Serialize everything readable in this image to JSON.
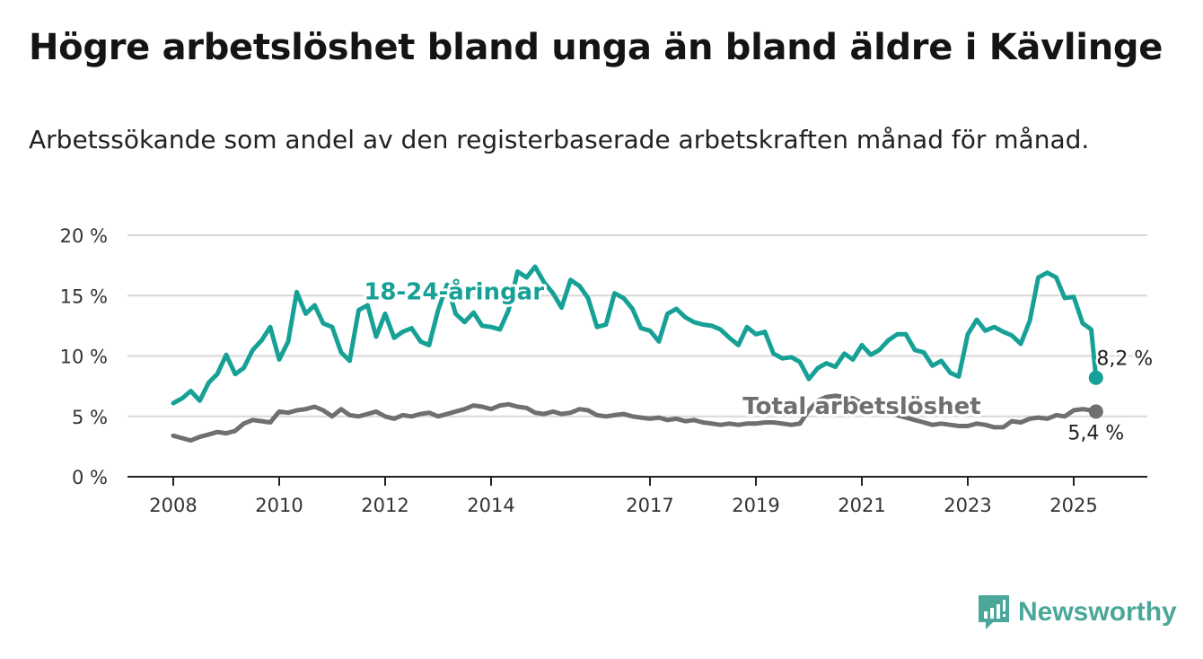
{
  "title": "Högre arbetslöshet bland unga än bland äldre i Kävlinge",
  "subtitle": "Arbetssökande som andel av den registerbaserade arbetskraften månad för månad.",
  "logo": {
    "name": "Newsworthy",
    "icon": "newsworthy-logo-icon",
    "color": "#4aa79a"
  },
  "chart_data": {
    "type": "line",
    "title": "Högre arbetslöshet bland unga än bland äldre i Kävlinge",
    "subtitle": "Arbetssökande som andel av den registerbaserade arbetskraften månad för månad.",
    "xlabel": "",
    "ylabel": "",
    "xlim": [
      2007.8,
      2026.4
    ],
    "ylim": [
      0,
      20
    ],
    "x_ticks": [
      {
        "value": 2008,
        "label": "2008"
      },
      {
        "value": 2010,
        "label": "2010"
      },
      {
        "value": 2012,
        "label": "2012"
      },
      {
        "value": 2014,
        "label": "2014"
      },
      {
        "value": 2017,
        "label": "2017"
      },
      {
        "value": 2019,
        "label": "2019"
      },
      {
        "value": 2021,
        "label": "2021"
      },
      {
        "value": 2023,
        "label": "2023"
      },
      {
        "value": 2025,
        "label": "2025"
      }
    ],
    "y_ticks": [
      {
        "value": 0,
        "label": "0 %"
      },
      {
        "value": 5,
        "label": "5 %"
      },
      {
        "value": 10,
        "label": "10 %"
      },
      {
        "value": 15,
        "label": "15 %"
      },
      {
        "value": 20,
        "label": "20 %"
      }
    ],
    "grid": "horizontal",
    "legend": "inline labels",
    "series": [
      {
        "name": "18-24-åringar",
        "color": "#17a196",
        "label_at": {
          "x": 2013.3,
          "y": 14.7
        },
        "end_label": "8,2 %",
        "end_point": {
          "x": 2025.42,
          "y": 8.2
        },
        "points": [
          [
            2008.0,
            6.1
          ],
          [
            2008.17,
            6.5
          ],
          [
            2008.33,
            7.1
          ],
          [
            2008.5,
            6.3
          ],
          [
            2008.67,
            7.8
          ],
          [
            2008.83,
            8.5
          ],
          [
            2009.0,
            10.1
          ],
          [
            2009.17,
            8.5
          ],
          [
            2009.33,
            9.0
          ],
          [
            2009.5,
            10.5
          ],
          [
            2009.67,
            11.3
          ],
          [
            2009.83,
            12.4
          ],
          [
            2010.0,
            9.7
          ],
          [
            2010.17,
            11.2
          ],
          [
            2010.33,
            15.3
          ],
          [
            2010.5,
            13.5
          ],
          [
            2010.67,
            14.2
          ],
          [
            2010.83,
            12.7
          ],
          [
            2011.0,
            12.4
          ],
          [
            2011.17,
            10.3
          ],
          [
            2011.33,
            9.6
          ],
          [
            2011.5,
            13.8
          ],
          [
            2011.67,
            14.2
          ],
          [
            2011.83,
            11.6
          ],
          [
            2012.0,
            13.5
          ],
          [
            2012.17,
            11.5
          ],
          [
            2012.33,
            12.0
          ],
          [
            2012.5,
            12.3
          ],
          [
            2012.67,
            11.2
          ],
          [
            2012.83,
            10.9
          ],
          [
            2013.0,
            13.8
          ],
          [
            2013.17,
            15.9
          ],
          [
            2013.33,
            13.5
          ],
          [
            2013.5,
            12.8
          ],
          [
            2013.67,
            13.6
          ],
          [
            2013.83,
            12.5
          ],
          [
            2014.0,
            12.4
          ],
          [
            2014.17,
            12.2
          ],
          [
            2014.33,
            13.8
          ],
          [
            2014.5,
            17.0
          ],
          [
            2014.67,
            16.5
          ],
          [
            2014.83,
            17.4
          ],
          [
            2015.0,
            16.1
          ],
          [
            2015.17,
            15.2
          ],
          [
            2015.33,
            14.0
          ],
          [
            2015.5,
            16.3
          ],
          [
            2015.67,
            15.8
          ],
          [
            2015.83,
            14.8
          ],
          [
            2016.0,
            12.4
          ],
          [
            2016.17,
            12.6
          ],
          [
            2016.33,
            15.2
          ],
          [
            2016.5,
            14.8
          ],
          [
            2016.67,
            13.9
          ],
          [
            2016.83,
            12.3
          ],
          [
            2017.0,
            12.1
          ],
          [
            2017.17,
            11.2
          ],
          [
            2017.33,
            13.5
          ],
          [
            2017.5,
            13.9
          ],
          [
            2017.67,
            13.2
          ],
          [
            2017.83,
            12.8
          ],
          [
            2018.0,
            12.6
          ],
          [
            2018.17,
            12.5
          ],
          [
            2018.33,
            12.2
          ],
          [
            2018.5,
            11.5
          ],
          [
            2018.67,
            10.9
          ],
          [
            2018.83,
            12.4
          ],
          [
            2019.0,
            11.8
          ],
          [
            2019.17,
            12.0
          ],
          [
            2019.33,
            10.2
          ],
          [
            2019.5,
            9.8
          ],
          [
            2019.67,
            9.9
          ],
          [
            2019.83,
            9.5
          ],
          [
            2020.0,
            8.1
          ],
          [
            2020.17,
            9.0
          ],
          [
            2020.33,
            9.4
          ],
          [
            2020.5,
            9.1
          ],
          [
            2020.67,
            10.2
          ],
          [
            2020.83,
            9.7
          ],
          [
            2021.0,
            10.9
          ],
          [
            2021.17,
            10.1
          ],
          [
            2021.33,
            10.5
          ],
          [
            2021.5,
            11.3
          ],
          [
            2021.67,
            11.8
          ],
          [
            2021.83,
            11.8
          ],
          [
            2022.0,
            10.5
          ],
          [
            2022.17,
            10.3
          ],
          [
            2022.33,
            9.2
          ],
          [
            2022.5,
            9.6
          ],
          [
            2022.67,
            8.6
          ],
          [
            2022.83,
            8.3
          ],
          [
            2023.0,
            11.8
          ],
          [
            2023.17,
            13.0
          ],
          [
            2023.33,
            12.1
          ],
          [
            2023.5,
            12.4
          ],
          [
            2023.67,
            12.0
          ],
          [
            2023.83,
            11.7
          ],
          [
            2024.0,
            11.0
          ],
          [
            2024.17,
            12.9
          ],
          [
            2024.33,
            16.5
          ],
          [
            2024.5,
            16.9
          ],
          [
            2024.67,
            16.5
          ],
          [
            2024.83,
            14.8
          ],
          [
            2025.0,
            14.9
          ],
          [
            2025.17,
            12.7
          ],
          [
            2025.33,
            12.2
          ],
          [
            2025.42,
            8.2
          ]
        ]
      },
      {
        "name": "Total arbetslöshet",
        "color": "#6f6f70",
        "label_at": {
          "x": 2021.0,
          "y": 5.2
        },
        "end_label": "5,4 %",
        "end_point": {
          "x": 2025.42,
          "y": 5.4
        },
        "points": [
          [
            2008.0,
            3.4
          ],
          [
            2008.17,
            3.2
          ],
          [
            2008.33,
            3.0
          ],
          [
            2008.5,
            3.3
          ],
          [
            2008.67,
            3.5
          ],
          [
            2008.83,
            3.7
          ],
          [
            2009.0,
            3.6
          ],
          [
            2009.17,
            3.8
          ],
          [
            2009.33,
            4.4
          ],
          [
            2009.5,
            4.7
          ],
          [
            2009.67,
            4.6
          ],
          [
            2009.83,
            4.5
          ],
          [
            2010.0,
            5.4
          ],
          [
            2010.17,
            5.3
          ],
          [
            2010.33,
            5.5
          ],
          [
            2010.5,
            5.6
          ],
          [
            2010.67,
            5.8
          ],
          [
            2010.83,
            5.5
          ],
          [
            2011.0,
            5.0
          ],
          [
            2011.17,
            5.6
          ],
          [
            2011.33,
            5.1
          ],
          [
            2011.5,
            5.0
          ],
          [
            2011.67,
            5.2
          ],
          [
            2011.83,
            5.4
          ],
          [
            2012.0,
            5.0
          ],
          [
            2012.17,
            4.8
          ],
          [
            2012.33,
            5.1
          ],
          [
            2012.5,
            5.0
          ],
          [
            2012.67,
            5.2
          ],
          [
            2012.83,
            5.3
          ],
          [
            2013.0,
            5.0
          ],
          [
            2013.17,
            5.2
          ],
          [
            2013.33,
            5.4
          ],
          [
            2013.5,
            5.6
          ],
          [
            2013.67,
            5.9
          ],
          [
            2013.83,
            5.8
          ],
          [
            2014.0,
            5.6
          ],
          [
            2014.17,
            5.9
          ],
          [
            2014.33,
            6.0
          ],
          [
            2014.5,
            5.8
          ],
          [
            2014.67,
            5.7
          ],
          [
            2014.83,
            5.3
          ],
          [
            2015.0,
            5.2
          ],
          [
            2015.17,
            5.4
          ],
          [
            2015.33,
            5.2
          ],
          [
            2015.5,
            5.3
          ],
          [
            2015.67,
            5.6
          ],
          [
            2015.83,
            5.5
          ],
          [
            2016.0,
            5.1
          ],
          [
            2016.17,
            5.0
          ],
          [
            2016.33,
            5.1
          ],
          [
            2016.5,
            5.2
          ],
          [
            2016.67,
            5.0
          ],
          [
            2016.83,
            4.9
          ],
          [
            2017.0,
            4.8
          ],
          [
            2017.17,
            4.9
          ],
          [
            2017.33,
            4.7
          ],
          [
            2017.5,
            4.8
          ],
          [
            2017.67,
            4.6
          ],
          [
            2017.83,
            4.7
          ],
          [
            2018.0,
            4.5
          ],
          [
            2018.17,
            4.4
          ],
          [
            2018.33,
            4.3
          ],
          [
            2018.5,
            4.4
          ],
          [
            2018.67,
            4.3
          ],
          [
            2018.83,
            4.4
          ],
          [
            2019.0,
            4.4
          ],
          [
            2019.17,
            4.5
          ],
          [
            2019.33,
            4.5
          ],
          [
            2019.5,
            4.4
          ],
          [
            2019.67,
            4.3
          ],
          [
            2019.83,
            4.4
          ],
          [
            2020.0,
            5.5
          ],
          [
            2020.17,
            6.3
          ],
          [
            2020.33,
            6.6
          ],
          [
            2020.5,
            6.7
          ],
          [
            2020.67,
            6.6
          ],
          [
            2020.83,
            6.5
          ],
          [
            2021.0,
            6.1
          ],
          [
            2021.17,
            5.8
          ],
          [
            2021.33,
            5.7
          ],
          [
            2021.5,
            5.3
          ],
          [
            2021.67,
            5.1
          ],
          [
            2021.83,
            4.9
          ],
          [
            2022.0,
            4.7
          ],
          [
            2022.17,
            4.5
          ],
          [
            2022.33,
            4.3
          ],
          [
            2022.5,
            4.4
          ],
          [
            2022.67,
            4.3
          ],
          [
            2022.83,
            4.2
          ],
          [
            2023.0,
            4.2
          ],
          [
            2023.17,
            4.4
          ],
          [
            2023.33,
            4.3
          ],
          [
            2023.5,
            4.1
          ],
          [
            2023.67,
            4.1
          ],
          [
            2023.83,
            4.6
          ],
          [
            2024.0,
            4.5
          ],
          [
            2024.17,
            4.8
          ],
          [
            2024.33,
            4.9
          ],
          [
            2024.5,
            4.8
          ],
          [
            2024.67,
            5.1
          ],
          [
            2024.83,
            5.0
          ],
          [
            2025.0,
            5.5
          ],
          [
            2025.17,
            5.6
          ],
          [
            2025.33,
            5.5
          ],
          [
            2025.42,
            5.4
          ]
        ]
      }
    ]
  }
}
